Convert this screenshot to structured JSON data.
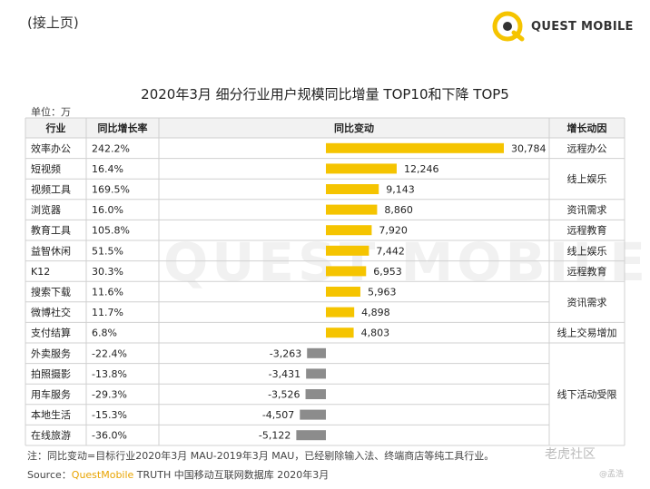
{
  "page": {
    "continued": "(接上页)",
    "logo_text": "QUEST MOBILE",
    "watermark": "QUEST MOBILE",
    "title": "2020年3月 细分行业用户规模同比增量 TOP10和下降 TOP5",
    "unit": "单位：万",
    "footnote": "注：同比变动=目标行业2020年3月 MAU-2019年3月 MAU，已经剔除输入法、终端商店等纯工具行业。",
    "source_prefix": "Source：",
    "source_brand": "QuestMobile",
    "source_rest": " TRUTH 中国移动互联网数据库 2020年3月",
    "wm_site": "老虎社区",
    "wm_user": "@孟浩"
  },
  "table_headers": {
    "industry": "行业",
    "growth_rate": "同比增长率",
    "change": "同比变动",
    "driver": "增长动因"
  },
  "colors": {
    "positive": "#f5c400",
    "negative": "#8c8c8c",
    "header_bg": "#f2f2f2",
    "grid": "#d0d0d0"
  },
  "drivers": [
    {
      "label": "远程办公",
      "rows": [
        0
      ]
    },
    {
      "label": "线上娱乐",
      "rows": [
        1,
        2
      ]
    },
    {
      "label": "资讯需求",
      "rows": [
        3
      ]
    },
    {
      "label": "远程教育",
      "rows": [
        4
      ]
    },
    {
      "label": "线上娱乐",
      "rows": [
        5
      ]
    },
    {
      "label": "远程教育",
      "rows": [
        6
      ]
    },
    {
      "label": "资讯需求",
      "rows": [
        7,
        8
      ]
    },
    {
      "label": "线上交易增加",
      "rows": [
        9
      ]
    },
    {
      "label": "线下活动受限",
      "rows": [
        10,
        11,
        12,
        13,
        14
      ]
    }
  ],
  "chart_data": {
    "type": "bar",
    "orientation": "horizontal",
    "title": "2020年3月 细分行业用户规模同比增量 TOP10和下降 TOP5",
    "unit": "万",
    "categories": [
      "效率办公",
      "短视频",
      "视频工具",
      "浏览器",
      "教育工具",
      "益智休闲",
      "K12",
      "搜索下载",
      "微博社交",
      "支付结算",
      "外卖服务",
      "拍照摄影",
      "用车服务",
      "本地生活",
      "在线旅游"
    ],
    "growth_rates": [
      "242.2%",
      "16.4%",
      "169.5%",
      "16.0%",
      "105.8%",
      "51.5%",
      "30.3%",
      "11.6%",
      "11.7%",
      "6.8%",
      "-22.4%",
      "-13.8%",
      "-29.3%",
      "-15.3%",
      "-36.0%"
    ],
    "values": [
      30784,
      12246,
      9143,
      8860,
      7920,
      7442,
      6953,
      5963,
      4898,
      4803,
      -3263,
      -3431,
      -3526,
      -4507,
      -5122
    ],
    "value_labels": [
      "30,784",
      "12,246",
      "9,143",
      "8,860",
      "7,920",
      "7,442",
      "6,953",
      "5,963",
      "4,898",
      "4,803",
      "-3,263",
      "-3,431",
      "-3,526",
      "-4,507",
      "-5,122"
    ],
    "xlim": [
      -6000,
      31000
    ]
  }
}
